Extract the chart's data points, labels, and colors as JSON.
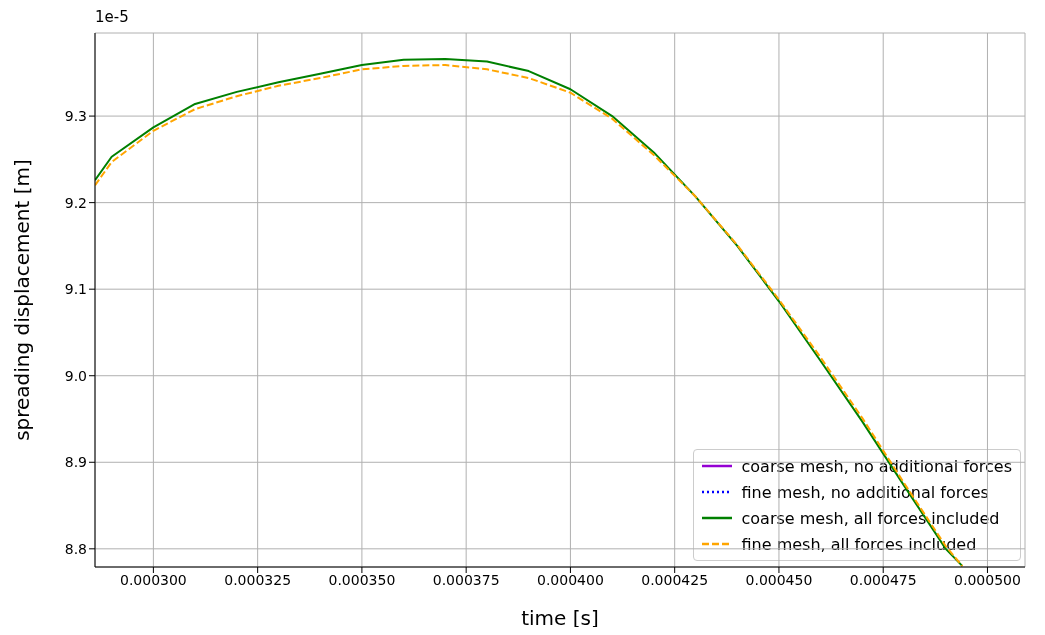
{
  "chart_data": {
    "type": "line",
    "xlabel": "time [s]",
    "ylabel": "spreading displacement [m]",
    "annotations": [
      "1e-5"
    ],
    "xlim": [
      0.000286,
      0.000509
    ],
    "ylim": [
      8.779,
      9.396
    ],
    "xticks": [
      {
        "value": 0.0003,
        "label": "0.000300"
      },
      {
        "value": 0.000325,
        "label": "0.000325"
      },
      {
        "value": 0.00035,
        "label": "0.000350"
      },
      {
        "value": 0.000375,
        "label": "0.000375"
      },
      {
        "value": 0.0004,
        "label": "0.000400"
      },
      {
        "value": 0.000425,
        "label": "0.000425"
      },
      {
        "value": 0.00045,
        "label": "0.000450"
      },
      {
        "value": 0.000475,
        "label": "0.000475"
      },
      {
        "value": 0.0005,
        "label": "0.000500"
      }
    ],
    "yticks": [
      8.8,
      8.9,
      {
        "value": 9.0,
        "label": "9.0"
      },
      9.1,
      9.2,
      9.3
    ],
    "grid": true,
    "legend": "bottom right",
    "x": [
      0.000286,
      0.00029,
      0.0003,
      0.00031,
      0.00032,
      0.00033,
      0.00034,
      0.00035,
      0.00036,
      0.00037,
      0.00038,
      0.00039,
      0.0004,
      0.00041,
      0.00042,
      0.00043,
      0.00044,
      0.00045,
      0.00046,
      0.00047,
      0.00048,
      0.00049,
      0.000494
    ],
    "series": [
      {
        "name": "coarse mesh, no additional forces",
        "color": "#9400d3",
        "line_style": "solid",
        "values": [
          null,
          null,
          null,
          null,
          null,
          null,
          null,
          null,
          null,
          null,
          null,
          null,
          null,
          null,
          null,
          null,
          null,
          null,
          null,
          null,
          null,
          null,
          null
        ]
      },
      {
        "name": "fine mesh, no additional forces",
        "color": "#0000ff",
        "line_style": "dotted",
        "values": [
          null,
          null,
          null,
          null,
          null,
          null,
          null,
          null,
          null,
          null,
          null,
          null,
          null,
          null,
          null,
          null,
          null,
          null,
          null,
          null,
          null,
          null,
          null
        ]
      },
      {
        "name": "coarse mesh, all forces included",
        "color": "#008000",
        "line_style": "solid",
        "values": [
          9.226,
          9.253,
          9.287,
          9.314,
          9.328,
          9.339,
          9.349,
          9.359,
          9.365,
          9.366,
          9.363,
          9.352,
          9.331,
          9.3,
          9.258,
          9.207,
          9.15,
          9.086,
          9.017,
          8.947,
          8.873,
          8.8,
          8.78
        ]
      },
      {
        "name": "fine mesh, all forces included",
        "color": "#ffa500",
        "line_style": "dashed",
        "values": [
          9.22,
          9.247,
          9.283,
          9.308,
          9.323,
          9.335,
          9.344,
          9.354,
          9.358,
          9.359,
          9.354,
          9.344,
          9.327,
          9.297,
          9.255,
          9.207,
          9.151,
          9.088,
          9.021,
          8.951,
          8.876,
          8.803,
          8.78
        ]
      }
    ]
  }
}
